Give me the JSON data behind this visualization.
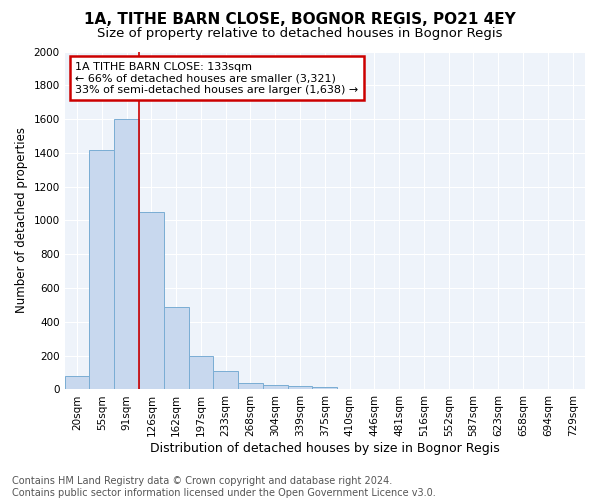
{
  "title": "1A, TITHE BARN CLOSE, BOGNOR REGIS, PO21 4EY",
  "subtitle": "Size of property relative to detached houses in Bognor Regis",
  "xlabel": "Distribution of detached houses by size in Bognor Regis",
  "ylabel": "Number of detached properties",
  "categories": [
    "20sqm",
    "55sqm",
    "91sqm",
    "126sqm",
    "162sqm",
    "197sqm",
    "233sqm",
    "268sqm",
    "304sqm",
    "339sqm",
    "375sqm",
    "410sqm",
    "446sqm",
    "481sqm",
    "516sqm",
    "552sqm",
    "587sqm",
    "623sqm",
    "658sqm",
    "694sqm",
    "729sqm"
  ],
  "values": [
    80,
    1420,
    1600,
    1050,
    490,
    200,
    110,
    40,
    25,
    20,
    15,
    0,
    0,
    0,
    0,
    0,
    0,
    0,
    0,
    0,
    0
  ],
  "bar_color": "#c8d8ee",
  "bar_edge_color": "#7aadd4",
  "marker_line_index": 3,
  "marker_line_color": "#cc0000",
  "annotation_box_text": "1A TITHE BARN CLOSE: 133sqm\n← 66% of detached houses are smaller (3,321)\n33% of semi-detached houses are larger (1,638) →",
  "annotation_box_color": "#cc0000",
  "ylim": [
    0,
    2000
  ],
  "yticks": [
    0,
    200,
    400,
    600,
    800,
    1000,
    1200,
    1400,
    1600,
    1800,
    2000
  ],
  "footnote": "Contains HM Land Registry data © Crown copyright and database right 2024.\nContains public sector information licensed under the Open Government Licence v3.0.",
  "title_fontsize": 11,
  "subtitle_fontsize": 9.5,
  "xlabel_fontsize": 9,
  "ylabel_fontsize": 8.5,
  "tick_fontsize": 7.5,
  "footnote_fontsize": 7,
  "grid_color": "#c8d8ee",
  "background_color": "#eef3fa"
}
